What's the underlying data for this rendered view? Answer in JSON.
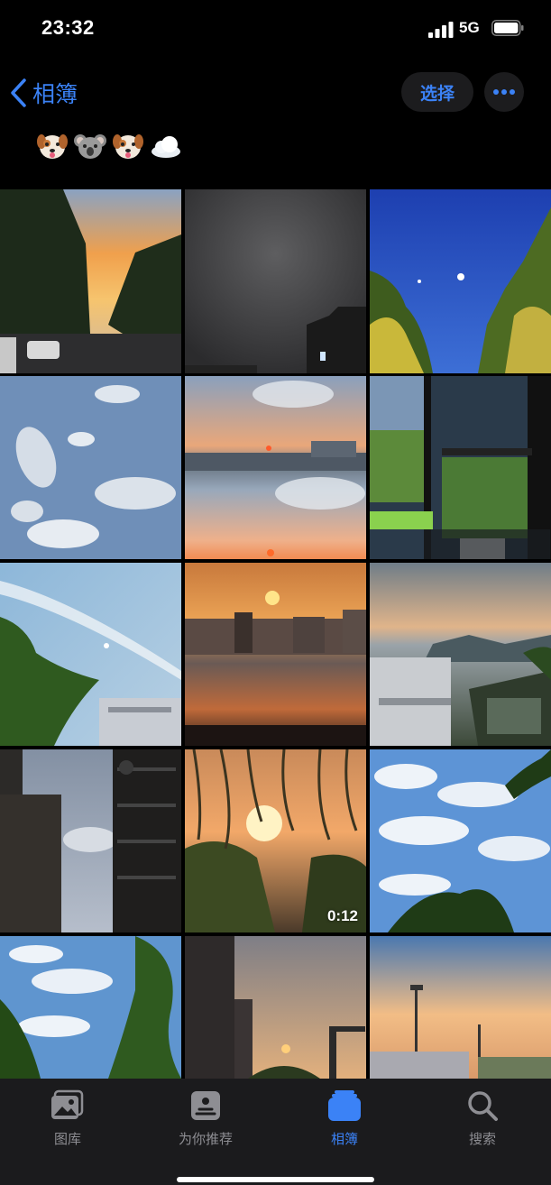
{
  "status_bar": {
    "time": "23:32",
    "network": "5G"
  },
  "nav": {
    "back_label": "相簿",
    "select_label": "选择"
  },
  "album_title_emojis": [
    "dog-face",
    "koala-face",
    "dog-face",
    "cloud"
  ],
  "photos": [
    {
      "desc": "tree-lined street at sunset"
    },
    {
      "desc": "dark hazy sky over building"
    },
    {
      "desc": "blue evening sky with moon and trees"
    },
    {
      "desc": "scattered clouds in blue sky"
    },
    {
      "desc": "sunset reflected over city skyline"
    },
    {
      "desc": "view through window with plant and desk"
    },
    {
      "desc": "blue sky with moon and tree"
    },
    {
      "desc": "orange sunset over city"
    },
    {
      "desc": "clouds over mountain and stadium"
    },
    {
      "desc": "apartment buildings against sky"
    },
    {
      "desc": "sun behind willow branches",
      "video_duration": "0:12"
    },
    {
      "desc": "white clouds with tree silhouette"
    },
    {
      "desc": "cloudy sky with green tree"
    },
    {
      "desc": "sunset between buildings"
    },
    {
      "desc": "sunset over field with light poles"
    }
  ],
  "tabs": [
    {
      "label": "图库",
      "icon": "photo-library-icon",
      "active": false
    },
    {
      "label": "为你推荐",
      "icon": "for-you-icon",
      "active": false
    },
    {
      "label": "相簿",
      "icon": "albums-icon",
      "active": true
    },
    {
      "label": "搜索",
      "icon": "search-icon",
      "active": false
    }
  ],
  "colors": {
    "accent": "#3b82f6",
    "background": "#000000",
    "tabbar": "#1c1c1e"
  }
}
